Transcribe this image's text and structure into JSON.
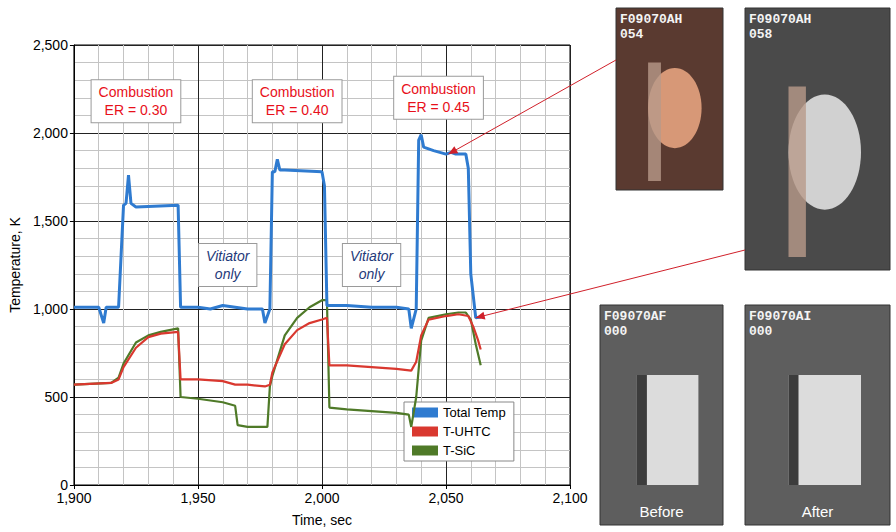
{
  "chart_data": {
    "type": "line",
    "xlabel": "Time, sec",
    "ylabel": "Temperature, K",
    "xlim": [
      1900,
      2100
    ],
    "xticks": [
      1900,
      1950,
      2000,
      2050,
      2100
    ],
    "ylim": [
      0,
      2500
    ],
    "yticks": [
      0,
      500,
      1000,
      1500,
      2000,
      2500
    ],
    "grid": true,
    "legend": "lower right",
    "series": [
      {
        "name": "Total Temp",
        "color": "#2f7bd0",
        "x": [
          1900,
          1910,
          1912,
          1913,
          1918,
          1920,
          1921,
          1922,
          1923,
          1925,
          1942,
          1943,
          1950,
          1955,
          1960,
          1965,
          1970,
          1976,
          1977,
          1979,
          1980,
          1981,
          1982,
          1983,
          1985,
          2000,
          2001,
          2002,
          2010,
          2020,
          2030,
          2035,
          2036,
          2038,
          2039,
          2040,
          2041,
          2045,
          2050,
          2052,
          2054,
          2058,
          2059,
          2060,
          2062,
          2064
        ],
        "values": [
          1010,
          1010,
          920,
          1010,
          1010,
          1590,
          1600,
          1760,
          1600,
          1580,
          1590,
          1010,
          1010,
          1000,
          1020,
          1010,
          1000,
          1000,
          920,
          1000,
          1780,
          1780,
          1850,
          1790,
          1790,
          1780,
          1700,
          1020,
          1020,
          1010,
          1010,
          1000,
          890,
          1000,
          1960,
          1990,
          1920,
          1900,
          1880,
          1890,
          1880,
          1880,
          1800,
          1200,
          950,
          955
        ]
      },
      {
        "name": "T-UHTC",
        "color": "#d9382f",
        "x": [
          1900,
          1915,
          1918,
          1920,
          1925,
          1930,
          1935,
          1942,
          1943,
          1950,
          1960,
          1965,
          1970,
          1977,
          1979,
          1980,
          1985,
          1990,
          1995,
          2000,
          2002,
          2003,
          2010,
          2020,
          2030,
          2036,
          2038,
          2040,
          2043,
          2050,
          2055,
          2059,
          2061,
          2063,
          2064
        ],
        "values": [
          570,
          580,
          600,
          670,
          780,
          840,
          860,
          870,
          600,
          600,
          590,
          570,
          570,
          560,
          570,
          640,
          800,
          880,
          920,
          940,
          950,
          680,
          680,
          670,
          660,
          650,
          700,
          850,
          940,
          960,
          970,
          960,
          900,
          820,
          770
        ]
      },
      {
        "name": "T-SiC",
        "color": "#4f7a28",
        "x": [
          1900,
          1915,
          1918,
          1920,
          1925,
          1930,
          1935,
          1942,
          1943,
          1950,
          1960,
          1965,
          1966,
          1970,
          1978,
          1979,
          1980,
          1985,
          1990,
          1995,
          2000,
          2002,
          2003,
          2010,
          2020,
          2030,
          2035,
          2036,
          2038,
          2040,
          2043,
          2050,
          2055,
          2058,
          2060,
          2062,
          2064
        ],
        "values": [
          570,
          580,
          610,
          690,
          810,
          850,
          870,
          890,
          500,
          490,
          470,
          450,
          340,
          330,
          330,
          560,
          620,
          850,
          950,
          1010,
          1050,
          1050,
          440,
          430,
          420,
          410,
          400,
          330,
          500,
          820,
          950,
          970,
          980,
          980,
          940,
          800,
          680
        ]
      }
    ],
    "combustion_boxes": [
      {
        "lines": [
          "Combustion",
          "ER = 0.30"
        ],
        "x": 1925,
        "y": 2180,
        "color": "#e8101a"
      },
      {
        "lines": [
          "Combustion",
          "ER = 0.40"
        ],
        "x": 1990,
        "y": 2180,
        "color": "#e8101a"
      },
      {
        "lines": [
          "Combustion",
          "ER = 0.45"
        ],
        "x": 2047,
        "y": 2200,
        "color": "#e8101a"
      }
    ],
    "vitiator_boxes": [
      {
        "lines": [
          "Vitiator",
          "only"
        ],
        "x": 1962,
        "y": 1250,
        "color": "#1f3a7a"
      },
      {
        "lines": [
          "Vitiator",
          "only"
        ],
        "x": 2020,
        "y": 1250,
        "color": "#1f3a7a"
      }
    ],
    "photos": [
      {
        "overlay": [
          "F09070AH",
          "054"
        ],
        "points_to": {
          "x": 2051,
          "y": 1880
        }
      },
      {
        "overlay": [
          "F09070AH",
          "058"
        ],
        "points_to": {
          "x": 2062,
          "y": 950
        }
      },
      {
        "overlay": [
          "F09070AF",
          "000"
        ],
        "caption": "Before"
      },
      {
        "overlay": [
          "F09070AI",
          "000"
        ],
        "caption": "After"
      }
    ]
  }
}
